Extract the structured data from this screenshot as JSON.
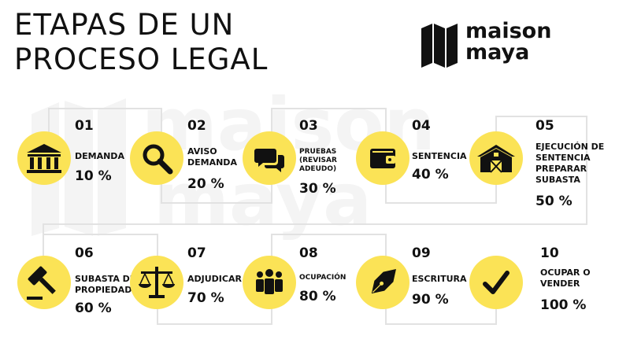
{
  "title": {
    "line1": "ETAPAS DE UN",
    "line2": "PROCESO LEGAL"
  },
  "brand": {
    "line1": "maison",
    "line2": "maya",
    "watermark1": "maison",
    "watermark2": "maya"
  },
  "colors": {
    "accent": "#fbe356",
    "text": "#111111",
    "watermark": "#f3f3f3",
    "line": "#dddddd"
  },
  "steps": [
    {
      "number": "01",
      "label": [
        "DEMANDA"
      ],
      "percent": "10 %",
      "icon": "courthouse-icon"
    },
    {
      "number": "02",
      "label": [
        "AVISO",
        "DEMANDA"
      ],
      "percent": "20 %",
      "icon": "magnifier-icon"
    },
    {
      "number": "03",
      "label": [
        "PRUEBAS",
        "(REVISAR",
        "ADEUDO)"
      ],
      "percent": "30 %",
      "icon": "chat-bubbles-icon"
    },
    {
      "number": "04",
      "label": [
        "SENTENCIA"
      ],
      "percent": "40 %",
      "icon": "wallet-icon"
    },
    {
      "number": "05",
      "label": [
        "EJECUCIÓN DE",
        "SENTENCIA",
        "PREPARAR",
        "SUBASTA"
      ],
      "percent": "50 %",
      "icon": "barn-icon"
    },
    {
      "number": "06",
      "label": [
        "SUBASTA DE",
        "PROPIEDAD"
      ],
      "percent": "60 %",
      "icon": "gavel-icon"
    },
    {
      "number": "07",
      "label": [
        "ADJUDICAR"
      ],
      "percent": "70 %",
      "icon": "scales-icon"
    },
    {
      "number": "08",
      "label": [
        "OCUPACIÓN"
      ],
      "percent": "80 %",
      "icon": "people-icon"
    },
    {
      "number": "09",
      "label": [
        "ESCRITURA"
      ],
      "percent": "90 %",
      "icon": "fountain-pen-icon"
    },
    {
      "number": "10",
      "label": [
        "OCUPAR O",
        "VENDER"
      ],
      "percent": "100 %",
      "icon": "checkmark-icon"
    }
  ]
}
